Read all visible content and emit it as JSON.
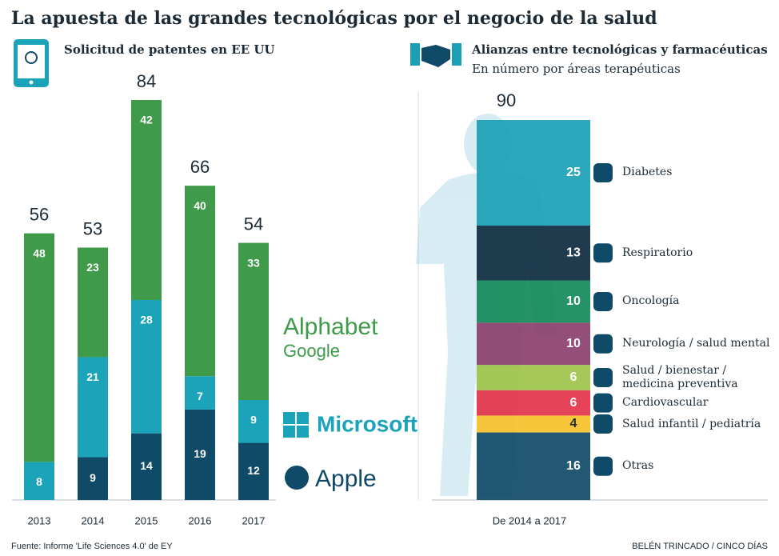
{
  "title": "La apuesta de las grandes tecnológicas por el negocio de la salud",
  "chart_data": [
    {
      "type": "stacked-bar",
      "title": "Solicitud de patentes en EE UU",
      "categories": [
        "2013",
        "2014",
        "2015",
        "2016",
        "2017"
      ],
      "totals": [
        56,
        53,
        84,
        66,
        54
      ],
      "series": [
        {
          "name": "Apple",
          "color": "#0f4a68",
          "values": [
            null,
            9,
            14,
            19,
            12
          ]
        },
        {
          "name": "Microsoft",
          "color": "#1ba3b9",
          "values": [
            8,
            21,
            28,
            7,
            9
          ]
        },
        {
          "name": "Alphabet",
          "subname": "Google",
          "color": "#3f9a4a",
          "values": [
            48,
            23,
            42,
            40,
            33
          ]
        }
      ]
    },
    {
      "type": "stacked-column",
      "title": "Alianzas entre tecnológicas y farmacéuticas",
      "subtitle": "En número por áreas terapéuticas",
      "category": "De 2014 a 2017",
      "total": 90,
      "segments": [
        {
          "name": "Diabetes",
          "color": "#1a9fb5",
          "value": 25
        },
        {
          "name": "Respiratorio",
          "color": "#0e2a3f",
          "value": 13
        },
        {
          "name": "Oncología",
          "color": "#12895a",
          "value": 10
        },
        {
          "name": "Neurología / salud mental",
          "color": "#8a3f6e",
          "value": 10
        },
        {
          "name": "Salud / bienestar / medicina preventiva",
          "color": "#9dc34a",
          "value": 6
        },
        {
          "name": "Cardiovascular",
          "color": "#e2334a",
          "value": 6
        },
        {
          "name": "Salud infantil / pediatría",
          "color": "#f6c12a",
          "value": 4
        },
        {
          "name": "Otras",
          "color": "#0f4a68",
          "value": 16
        }
      ]
    }
  ],
  "source": "Fuente: Informe 'Life Sciences 4.0' de EY",
  "credit": "BELÉN TRINCADO / CINCO DÍAS"
}
